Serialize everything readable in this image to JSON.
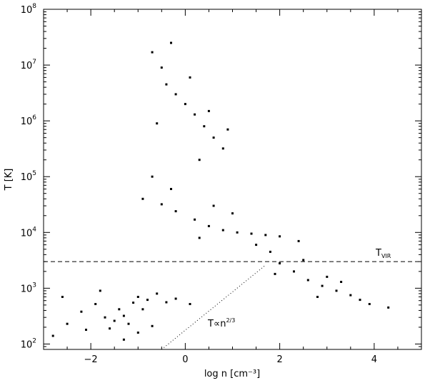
{
  "chart_data": {
    "type": "scatter",
    "title": "",
    "xlabel": "log n [cm⁻³]",
    "ylabel": "T [K]",
    "xlim": [
      -3.0,
      5.0
    ],
    "ylim": [
      80,
      100000000
    ],
    "y_scale": "log",
    "grid": false,
    "legend": "none",
    "x_ticks": [
      {
        "value": -2,
        "label": "−2"
      },
      {
        "value": 0,
        "label": "0"
      },
      {
        "value": 2,
        "label": "2"
      },
      {
        "value": 4,
        "label": "4"
      }
    ],
    "y_ticks": [
      {
        "value": 100,
        "base": "10",
        "exp": "2"
      },
      {
        "value": 1000,
        "base": "10",
        "exp": "3"
      },
      {
        "value": 10000,
        "base": "10",
        "exp": "4"
      },
      {
        "value": 100000,
        "base": "10",
        "exp": "5"
      },
      {
        "value": 1000000,
        "base": "10",
        "exp": "6"
      },
      {
        "value": 10000000,
        "base": "10",
        "exp": "7"
      },
      {
        "value": 100000000,
        "base": "10",
        "exp": "8"
      }
    ],
    "reference_lines": [
      {
        "kind": "horizontal",
        "style": "dashed",
        "y": 3000,
        "label": "T",
        "label_sub": "VIR"
      },
      {
        "kind": "line",
        "style": "dotted",
        "x": [
          -0.5,
          1.7
        ],
        "y": [
          80,
          2600
        ],
        "label": "T∝n",
        "label_sup": "2/3"
      }
    ],
    "series": [
      {
        "points": [
          [
            -2.8,
            140
          ],
          [
            -2.5,
            230
          ],
          [
            -2.2,
            380
          ],
          [
            -1.9,
            520
          ],
          [
            -1.7,
            300
          ],
          [
            -1.6,
            190
          ],
          [
            -1.5,
            260
          ],
          [
            -1.4,
            420
          ],
          [
            -1.3,
            320
          ],
          [
            -1.2,
            230
          ],
          [
            -1.1,
            550
          ],
          [
            -1.0,
            700
          ],
          [
            -0.9,
            420
          ],
          [
            -0.8,
            620
          ],
          [
            -0.6,
            800
          ],
          [
            -0.4,
            560
          ],
          [
            -0.2,
            650
          ],
          [
            0.1,
            520
          ],
          [
            -1.8,
            900
          ],
          [
            -2.1,
            180
          ],
          [
            -1.3,
            120
          ],
          [
            -0.7,
            210
          ],
          [
            -2.6,
            700
          ],
          [
            -1.0,
            160
          ]
        ]
      },
      {
        "points": [
          [
            -0.7,
            17000000
          ],
          [
            -0.5,
            9000000
          ],
          [
            -0.4,
            4500000
          ],
          [
            -0.2,
            3000000
          ],
          [
            0.0,
            2000000
          ],
          [
            0.2,
            1300000
          ],
          [
            0.4,
            800000
          ],
          [
            0.6,
            500000
          ],
          [
            0.8,
            320000
          ],
          [
            0.1,
            6000000
          ],
          [
            -0.3,
            25000000
          ],
          [
            0.5,
            1500000
          ],
          [
            -0.6,
            900000
          ],
          [
            0.3,
            200000
          ],
          [
            0.9,
            700000
          ]
        ]
      },
      {
        "points": [
          [
            -0.9,
            40000
          ],
          [
            -0.5,
            32000
          ],
          [
            -0.2,
            24000
          ],
          [
            0.2,
            17000
          ],
          [
            0.5,
            13000
          ],
          [
            0.8,
            11000
          ],
          [
            1.1,
            10000
          ],
          [
            1.4,
            9500
          ],
          [
            1.7,
            9000
          ],
          [
            2.0,
            8500
          ],
          [
            2.4,
            7000
          ],
          [
            -0.3,
            60000
          ],
          [
            0.6,
            30000
          ],
          [
            1.0,
            22000
          ],
          [
            -0.7,
            100000
          ],
          [
            0.3,
            8000
          ],
          [
            1.5,
            6000
          ],
          [
            1.8,
            4500
          ]
        ]
      },
      {
        "points": [
          [
            2.0,
            2800
          ],
          [
            2.3,
            2000
          ],
          [
            2.6,
            1400
          ],
          [
            2.9,
            1100
          ],
          [
            3.2,
            900
          ],
          [
            3.5,
            750
          ],
          [
            3.7,
            620
          ],
          [
            3.9,
            520
          ],
          [
            4.3,
            450
          ],
          [
            1.9,
            1800
          ],
          [
            2.5,
            3200
          ],
          [
            3.0,
            1600
          ],
          [
            2.8,
            700
          ],
          [
            3.3,
            1300
          ]
        ]
      }
    ]
  }
}
